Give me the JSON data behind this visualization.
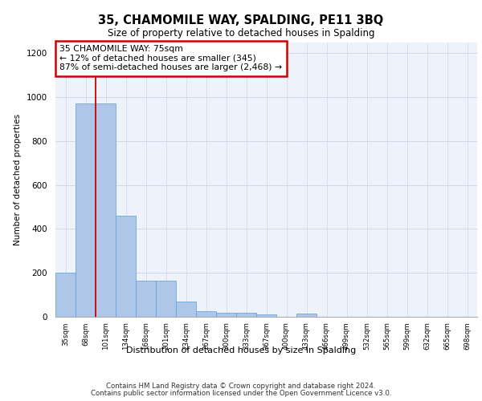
{
  "title": "35, CHAMOMILE WAY, SPALDING, PE11 3BQ",
  "subtitle": "Size of property relative to detached houses in Spalding",
  "xlabel": "Distribution of detached houses by size in Spalding",
  "ylabel": "Number of detached properties",
  "categories": [
    "35sqm",
    "68sqm",
    "101sqm",
    "134sqm",
    "168sqm",
    "201sqm",
    "234sqm",
    "267sqm",
    "300sqm",
    "333sqm",
    "367sqm",
    "400sqm",
    "433sqm",
    "466sqm",
    "499sqm",
    "532sqm",
    "565sqm",
    "599sqm",
    "632sqm",
    "665sqm",
    "698sqm"
  ],
  "values": [
    200,
    970,
    970,
    460,
    165,
    165,
    70,
    25,
    20,
    17,
    12,
    0,
    13,
    0,
    0,
    0,
    0,
    0,
    0,
    0,
    0
  ],
  "bar_color": "#aec6e8",
  "bar_edge_color": "#5a9fd4",
  "grid_color": "#d0d8e8",
  "background_color": "#eef2fb",
  "annotation_box_text": "35 CHAMOMILE WAY: 75sqm\n← 12% of detached houses are smaller (345)\n87% of semi-detached houses are larger (2,468) →",
  "annotation_box_color": "#ffffff",
  "annotation_box_edge_color": "#cc0000",
  "ylim": [
    0,
    1250
  ],
  "yticks": [
    0,
    200,
    400,
    600,
    800,
    1000,
    1200
  ],
  "footer_line1": "Contains HM Land Registry data © Crown copyright and database right 2024.",
  "footer_line2": "Contains public sector information licensed under the Open Government Licence v3.0."
}
